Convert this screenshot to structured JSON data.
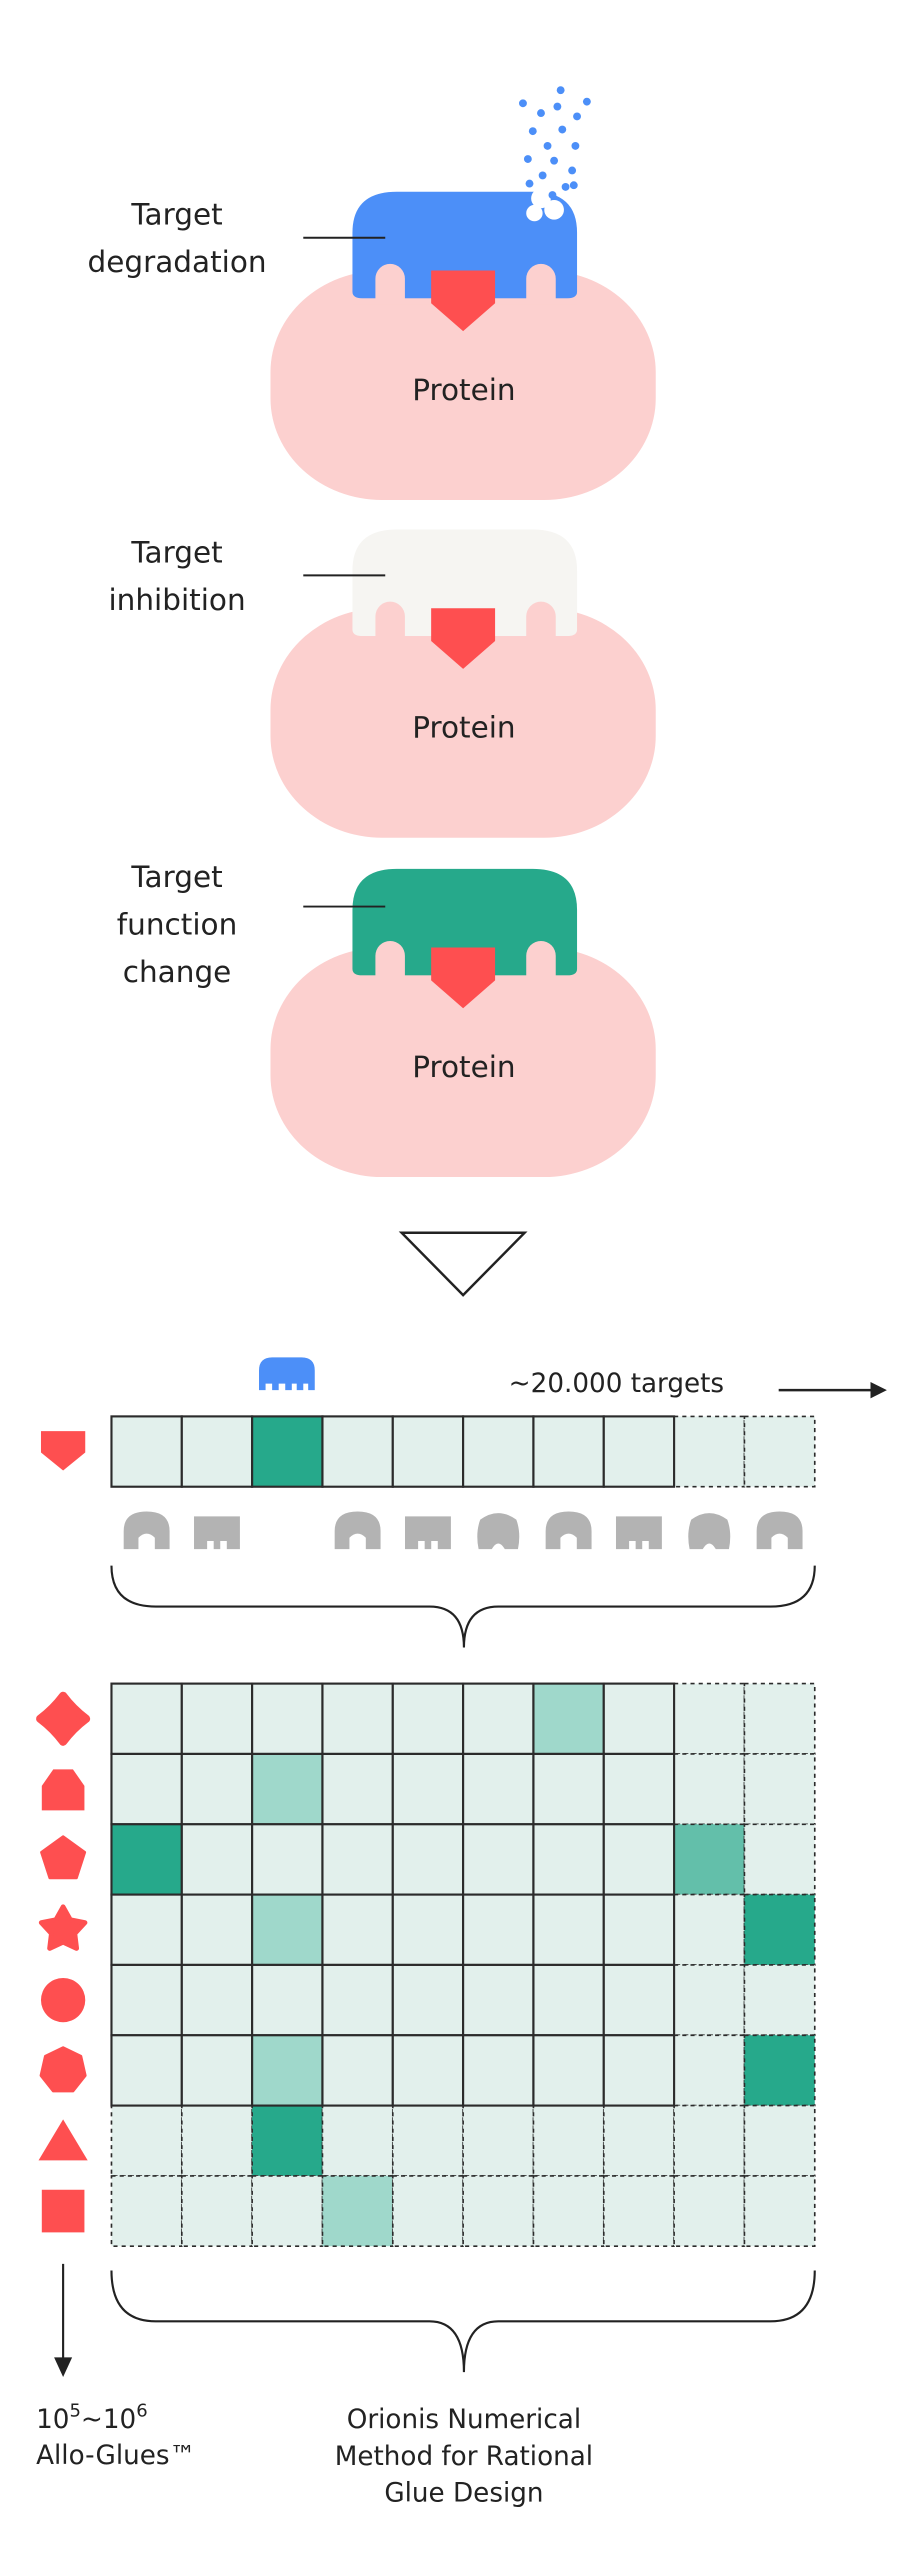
{
  "colors": {
    "protein": "#fcd0cf",
    "pocket_ligand": "#fe4f50",
    "glue_degradation": "#4c8ff8",
    "glue_inhibition": "#f6f5f2",
    "glue_function_change": "#26a98b",
    "cell_base": "#e2f0ec",
    "cell_light": "#9fd8cb",
    "cell_medium": "#63bfaa",
    "cell_dark": "#26a98b",
    "grey_glue": "#b3b3b3"
  },
  "panels": [
    {
      "label_lines": [
        "Target",
        "degradation"
      ],
      "protein_label": "Protein",
      "glue": "degradation"
    },
    {
      "label_lines": [
        "Target",
        "inhibition"
      ],
      "protein_label": "Protein",
      "glue": "inhibition"
    },
    {
      "label_lines": [
        "Target",
        "function",
        "change"
      ],
      "protein_label": "Protein",
      "glue": "function_change"
    }
  ],
  "screen": {
    "targets_label": "~20.000 targets",
    "top_row_levels": [
      0,
      0,
      3,
      0,
      0,
      0,
      0,
      0,
      0,
      0
    ],
    "matrix_levels": [
      [
        0,
        0,
        0,
        0,
        0,
        0,
        1,
        0,
        0,
        0
      ],
      [
        0,
        0,
        1,
        0,
        0,
        0,
        0,
        0,
        0,
        0
      ],
      [
        3,
        0,
        0,
        0,
        0,
        0,
        0,
        0,
        2,
        0
      ],
      [
        0,
        0,
        1,
        0,
        0,
        0,
        0,
        0,
        0,
        3
      ],
      [
        0,
        0,
        0,
        0,
        0,
        0,
        0,
        0,
        0,
        0
      ],
      [
        0,
        0,
        1,
        0,
        0,
        0,
        0,
        0,
        0,
        3
      ],
      [
        0,
        0,
        3,
        0,
        0,
        0,
        0,
        0,
        0,
        0
      ],
      [
        0,
        0,
        0,
        1,
        0,
        0,
        0,
        0,
        0,
        0
      ]
    ],
    "glue_icons": [
      "quatrefoil",
      "house",
      "pentagon",
      "star",
      "circle",
      "heptagon",
      "triangle",
      "square"
    ],
    "allo_glues": {
      "count_base": "10",
      "exp1": "5",
      "tilde": "~",
      "exp2": "6",
      "name": "Allo-Glues™"
    },
    "method_lines": [
      "Orionis Numerical",
      "Method for Rational",
      "Glue Design"
    ]
  }
}
